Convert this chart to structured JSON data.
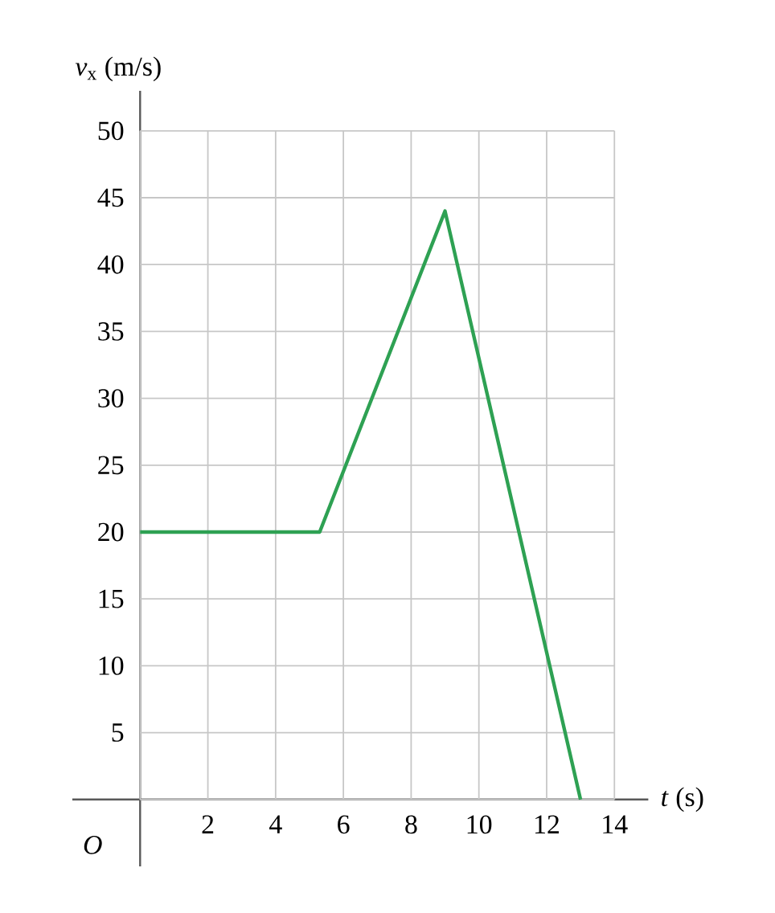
{
  "chart_data": {
    "type": "line",
    "xlabel": "*t* (s)",
    "ylabel": "*v*$_{x}$ (m/s)",
    "x": [
      0,
      5.3,
      9,
      13
    ],
    "values": [
      20,
      20,
      44,
      0
    ],
    "color": "#2ea153",
    "xlim": [
      -2,
      15
    ],
    "ylim": [
      -5,
      53
    ],
    "xticks": [
      2,
      4,
      6,
      8,
      10,
      12,
      14
    ],
    "yticks": [
      5,
      10,
      15,
      20,
      25,
      30,
      35,
      40,
      45,
      50
    ],
    "grid": true,
    "marker": "none",
    "line_style": "solid",
    "annotations": [
      "*O*"
    ]
  }
}
